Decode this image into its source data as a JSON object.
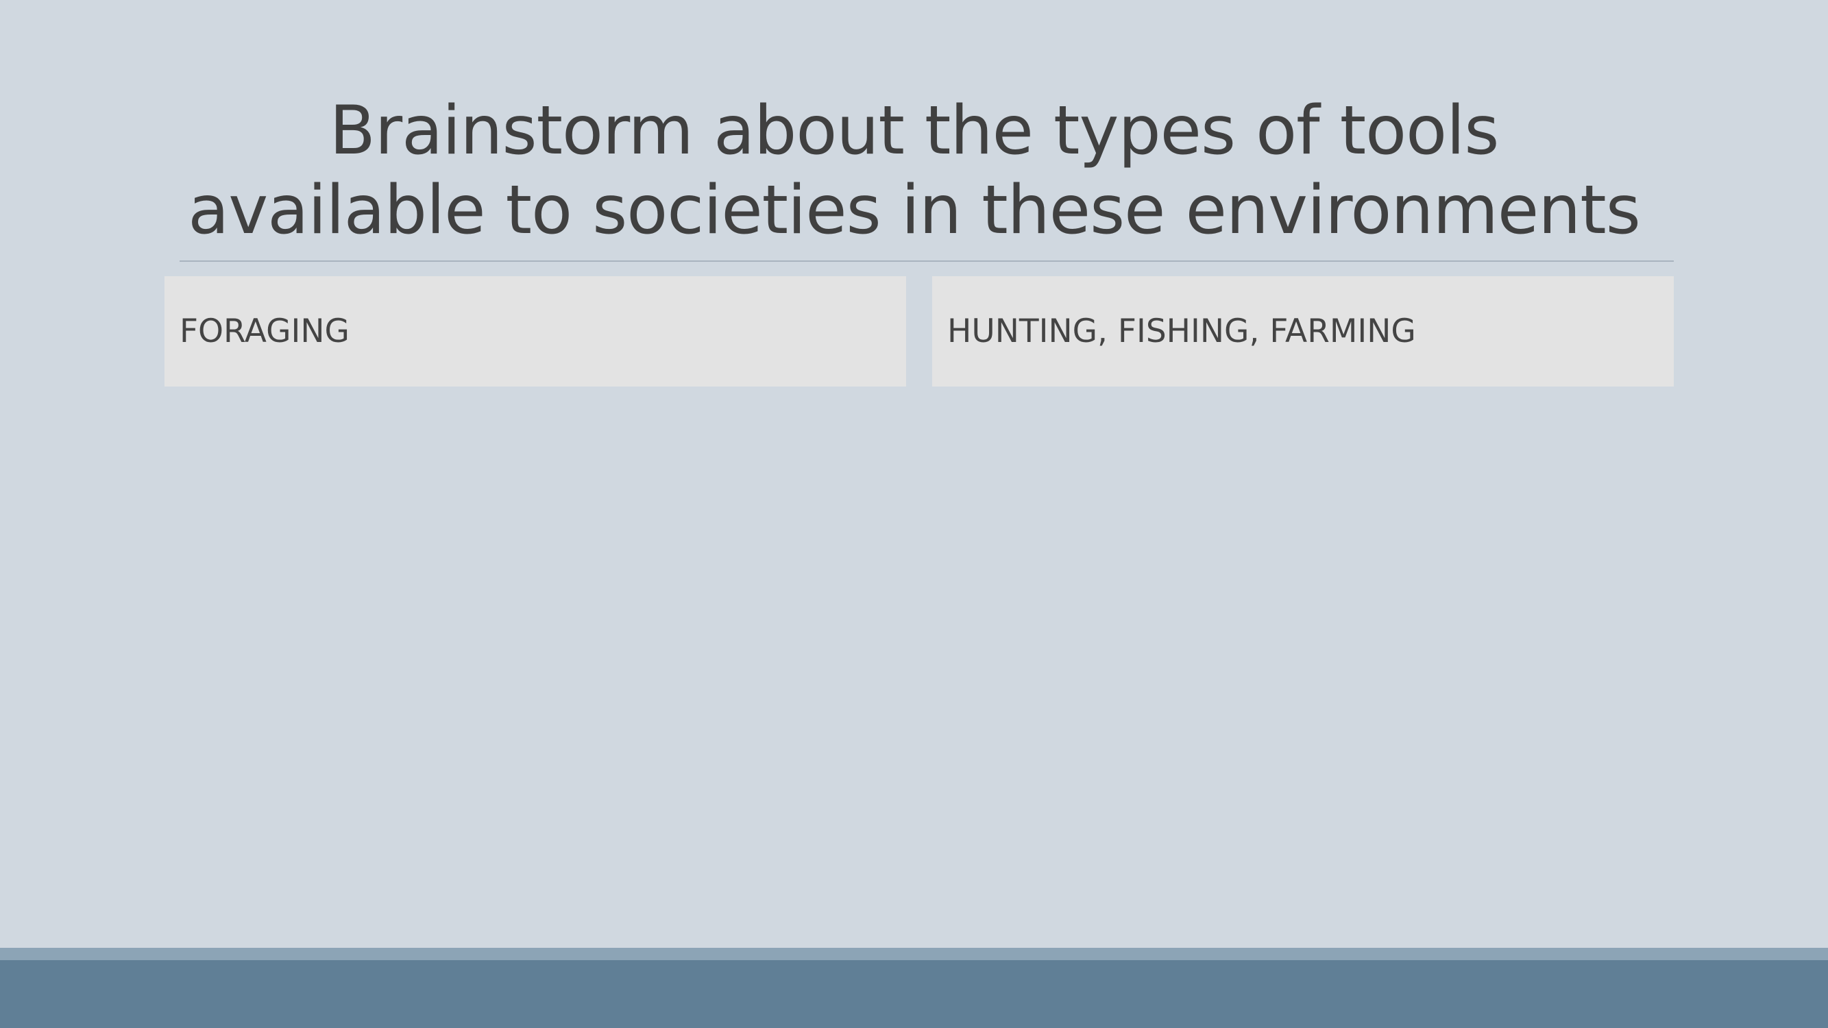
{
  "slide": {
    "title_line1": "Brainstorm about the types of tools",
    "title_line2": "available to societies in these environments",
    "columns": [
      {
        "header": "FORAGING"
      },
      {
        "header": "HUNTING, FISHING, FARMING"
      }
    ]
  },
  "colors": {
    "background": "#d0d8e0",
    "title_text": "#404040",
    "header_fill": "#e3e3e3",
    "footer_stripe": "#8ca4b6",
    "footer_bar": "#607f96"
  }
}
